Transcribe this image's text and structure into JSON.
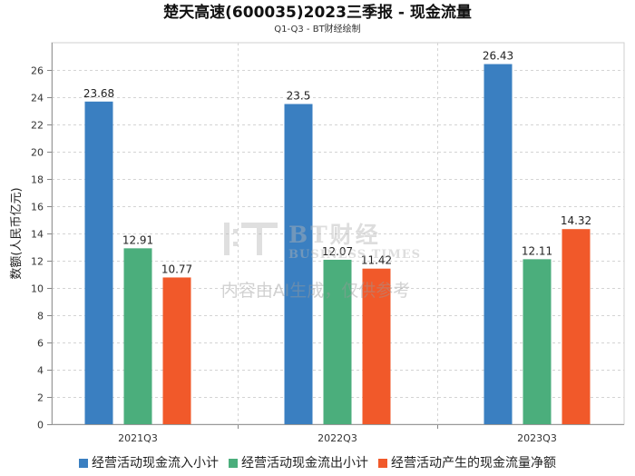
{
  "title": "楚天高速(600035)2023三季报 - 现金流量",
  "subtitle": "Q1-Q3 - BT财经绘制",
  "watermark": {
    "logo_text": "BT财经",
    "logo_sub": "BUSINESS TIMES",
    "disclaimer": "内容由AI生成，仅供参考"
  },
  "chart_data": {
    "type": "bar",
    "title": "楚天高速(600035)2023三季报 - 现金流量",
    "subtitle": "Q1-Q3 - BT财经绘制",
    "xlabel": "",
    "ylabel": "数额(人民币亿元)",
    "categories": [
      "2021Q3",
      "2022Q3",
      "2023Q3"
    ],
    "series": [
      {
        "name": "经营活动现金流入小计",
        "values": [
          23.68,
          23.5,
          26.43
        ],
        "color": "#3A7FC1"
      },
      {
        "name": "经营活动现金流出小计",
        "values": [
          12.91,
          12.07,
          12.11
        ],
        "color": "#4BAE7C"
      },
      {
        "name": "经营活动产生的现金流量净额",
        "values": [
          10.77,
          11.42,
          14.32
        ],
        "color": "#F1592A"
      }
    ],
    "ylim": [
      0,
      28
    ],
    "yticks": [
      "0",
      "2",
      "4",
      "6",
      "8",
      "10",
      "12",
      "14",
      "16",
      "18",
      "20",
      "22",
      "24",
      "26"
    ],
    "data_labels": [
      [
        "23.68",
        "23.5",
        "26.43"
      ],
      [
        "12.91",
        "12.07",
        "12.11"
      ],
      [
        "10.77",
        "11.42",
        "14.32"
      ]
    ],
    "grid": true,
    "legend_position": "bottom"
  }
}
